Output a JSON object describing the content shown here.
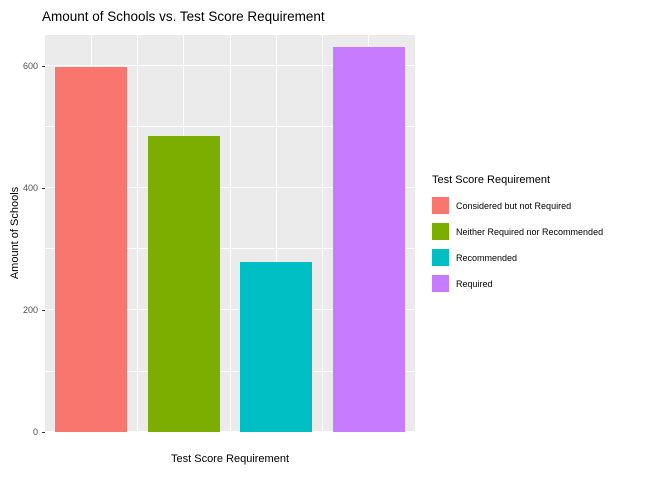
{
  "chart_data": {
    "type": "bar",
    "title": "Amount of Schools vs. Test Score Requirement",
    "xlabel": "Test Score Requirement",
    "ylabel": "Amount of Schools",
    "categories": [
      "Considered but not Required",
      "Neither Required nor Recommended",
      "Recommended",
      "Required"
    ],
    "values": [
      598,
      485,
      278,
      630
    ],
    "colors": [
      "#F8766D",
      "#7CAE00",
      "#00BFC4",
      "#C77CFF"
    ],
    "ylim": [
      0,
      650
    ],
    "yticks": [
      0,
      200,
      400,
      600
    ],
    "yticks_minor": [
      100,
      300,
      500
    ],
    "grid": true,
    "panel_background": "#EBEBEB",
    "legend_position": "right"
  },
  "legend": {
    "title": "Test Score Requirement",
    "items": [
      {
        "label": "Considered but not Required",
        "color": "#F8766D"
      },
      {
        "label": "Neither Required nor Recommended",
        "color": "#7CAE00"
      },
      {
        "label": "Recommended",
        "color": "#00BFC4"
      },
      {
        "label": "Required",
        "color": "#C77CFF"
      }
    ]
  }
}
